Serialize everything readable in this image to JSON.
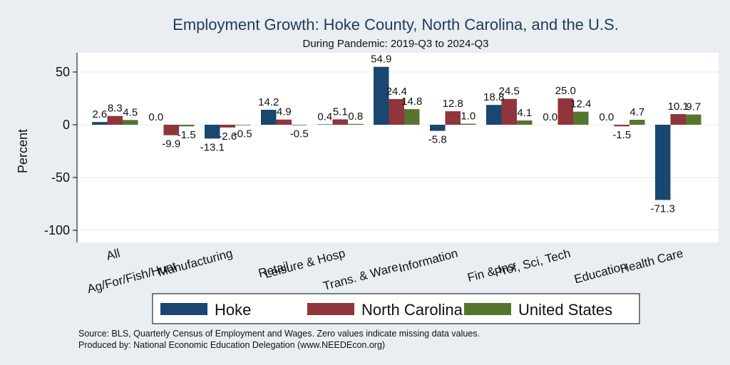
{
  "chart_data": {
    "type": "bar",
    "title": "Employment Growth: Hoke County, North Carolina, and the U.S.",
    "subtitle": "During Pandemic: 2019-Q3 to 2024-Q3",
    "ylabel": "Percent",
    "xlabel": "",
    "ylim": [
      -110,
      70
    ],
    "yticks": [
      50,
      0,
      -50,
      -100
    ],
    "grid": true,
    "legend_position": "bottom",
    "categories": [
      "All",
      "Ag/For/Fish/Hunt",
      "Manufacturing",
      "Retail",
      "Leisure & Hosp",
      "Trans. & Ware.",
      "Information",
      "Fin & Ins",
      "Prof, Sci, Tech",
      "Education",
      "Health Care"
    ],
    "series": [
      {
        "name": "Hoke",
        "color": "#1a476f",
        "values": [
          2.6,
          0.0,
          -13.1,
          14.2,
          0.4,
          54.9,
          -5.8,
          18.8,
          0.0,
          0.0,
          -71.3
        ]
      },
      {
        "name": "North Carolina",
        "color": "#90353b",
        "values": [
          8.3,
          -9.9,
          -2.6,
          4.9,
          5.1,
          24.4,
          12.8,
          24.5,
          25.0,
          -1.5,
          10.1
        ]
      },
      {
        "name": "United States",
        "color": "#55752f",
        "values": [
          4.5,
          -1.5,
          -0.5,
          -0.5,
          0.8,
          14.8,
          1.0,
          4.1,
          12.4,
          4.7,
          9.7
        ]
      }
    ],
    "notes": [
      "Source: BLS, Quarterly Census of Employment and Wages. Zero values indicate missing data values.",
      "Produced by: National Economic Education Delegation (www.NEEDEcon.org)"
    ]
  }
}
